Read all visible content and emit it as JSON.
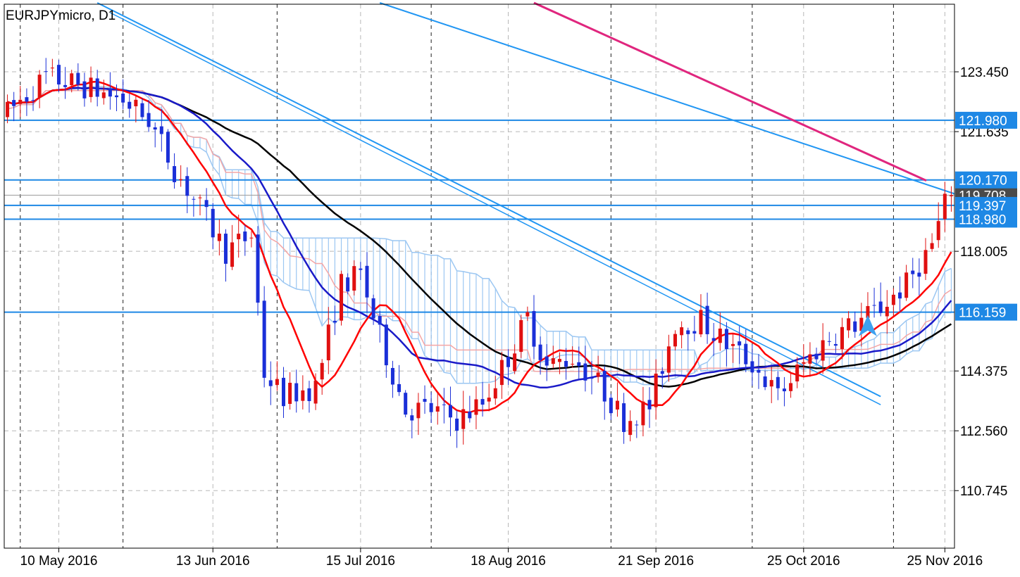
{
  "chart_data": {
    "type": "candlestick",
    "title": "EURJPYmicro, D1",
    "y_ticks": [
      "123.450",
      "121.635",
      "118.005",
      "114.375",
      "112.560",
      "110.745"
    ],
    "y_tick_values": [
      123.45,
      121.635,
      118.005,
      114.375,
      112.56,
      110.745
    ],
    "x_ticks": [
      "10 May 2016",
      "13 Jun 2016",
      "15 Jul 2016",
      "18 Aug 2016",
      "21 Sep 2016",
      "25 Oct 2016",
      "25 Nov 2016"
    ],
    "x_tick_bar_index": [
      8,
      32,
      55,
      78,
      101,
      124,
      146
    ],
    "ylim": [
      109.0,
      125.5
    ],
    "bar_count": 148,
    "grid": true,
    "horizontal_levels": [
      {
        "label": "121.980",
        "value": 121.98
      },
      {
        "label": "120.170",
        "value": 120.17
      },
      {
        "label": "119.397",
        "value": 119.397
      },
      {
        "label": "118.980",
        "value": 118.98
      },
      {
        "label": "116.159",
        "value": 116.159
      }
    ],
    "current_price_label": "119.708",
    "current_price": 119.708,
    "colors": {
      "bull": "#e01010",
      "bear": "#1a2fd8",
      "level": "#1e88e5",
      "trendline": "#2196f3",
      "ma_fast": "#ff0000",
      "ma_mid": "#1a1ac8",
      "ma_slow": "#000000",
      "ma_long": "#e0267e",
      "cloud": "#9cc7f2",
      "kijun": "#f4a6a6"
    }
  }
}
